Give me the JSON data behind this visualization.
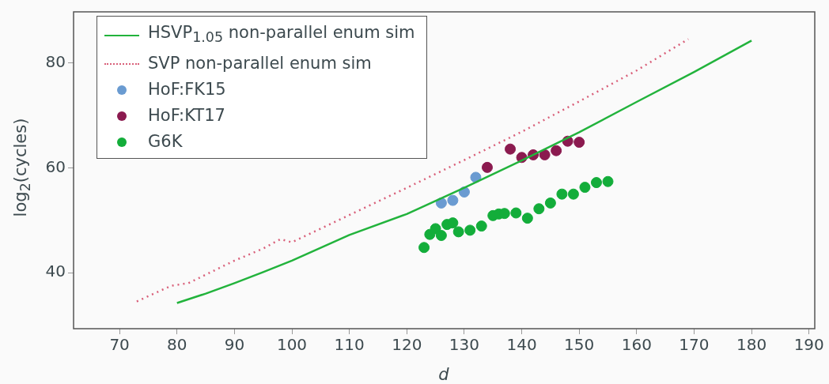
{
  "chart_data": {
    "type": "scatter",
    "xlabel": "d",
    "ylabel": "log$_{2}$(cycles)",
    "xlim": [
      62,
      191
    ],
    "ylim": [
      29.3,
      89.8
    ],
    "xticks": [
      70,
      80,
      90,
      100,
      110,
      120,
      130,
      140,
      150,
      160,
      170,
      180,
      190
    ],
    "yticks": [
      40,
      60,
      80
    ],
    "grid": false,
    "legend": "top left",
    "series": [
      {
        "name": "HSVP$_{1.05}$ non-parallel enum sim",
        "type": "line",
        "marker": "none",
        "line_style": "solid",
        "color": "#22b33c",
        "x": [
          80,
          85,
          90,
          95,
          100,
          110,
          120,
          130,
          140,
          150,
          160,
          170,
          180
        ],
        "values": [
          34.2,
          36.0,
          38.0,
          40.1,
          42.3,
          47.2,
          51.2,
          56.2,
          61.4,
          66.8,
          72.6,
          78.3,
          84.3
        ]
      },
      {
        "name": "SVP non-parallel enum sim",
        "type": "line",
        "marker": "none",
        "line_style": "dotted",
        "color": "#d9607a",
        "x": [
          73,
          79,
          82,
          90,
          95,
          98,
          100,
          110,
          120,
          130,
          140,
          150,
          160,
          169
        ],
        "values": [
          34.5,
          37.5,
          38.0,
          42.3,
          44.6,
          46.4,
          45.8,
          51.0,
          56.2,
          61.5,
          66.9,
          72.7,
          78.6,
          84.6
        ]
      },
      {
        "name": "HoF:FK15",
        "marker": "circle",
        "color": "#6a9bd1",
        "x": [
          126,
          128,
          130,
          132
        ],
        "values": [
          53.3,
          53.8,
          55.4,
          58.2
        ]
      },
      {
        "name": "HoF:KT17",
        "marker": "circle",
        "color": "#8b1a4f",
        "x": [
          134,
          138,
          140,
          142,
          144,
          146,
          148,
          150
        ],
        "values": [
          60.1,
          63.6,
          62.0,
          62.5,
          62.5,
          63.3,
          65.1,
          64.9
        ]
      },
      {
        "name": "G6K",
        "marker": "circle",
        "color": "#13ad3a",
        "x": [
          123,
          124,
          125,
          126,
          127,
          128,
          129,
          131,
          133,
          135,
          136,
          137,
          139,
          141,
          143,
          145,
          147,
          149,
          151,
          153,
          155
        ],
        "values": [
          44.8,
          47.3,
          48.4,
          47.1,
          49.2,
          49.5,
          47.8,
          48.1,
          48.9,
          50.9,
          51.2,
          51.3,
          51.4,
          50.4,
          52.2,
          53.3,
          55.0,
          55.0,
          56.3,
          57.2,
          57.4
        ]
      }
    ]
  }
}
